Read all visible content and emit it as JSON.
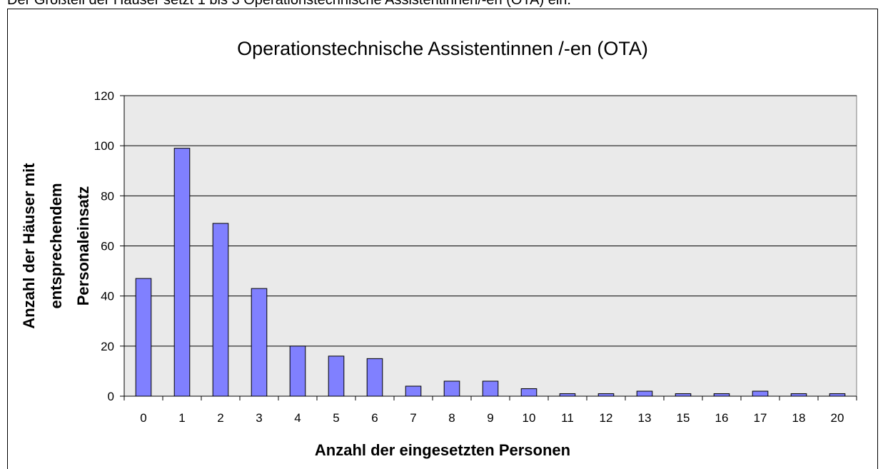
{
  "intro": "Der Großteil der Häuser setzt 1 bis 3 Operationstechnische Assistentinnen/-en (OTA) ein.",
  "chart_data": {
    "type": "bar",
    "title": "Operationstechnische Assistentinnen /-en (OTA)",
    "xlabel": "Anzahl der eingesetzten Personen",
    "ylabel": [
      "Anzahl der Häuser mit",
      "entsprechendem",
      "Personaleinsatz"
    ],
    "categories": [
      "0",
      "1",
      "2",
      "3",
      "4",
      "5",
      "6",
      "7",
      "8",
      "9",
      "10",
      "11",
      "12",
      "13",
      "15",
      "16",
      "17",
      "18",
      "20"
    ],
    "values": [
      47,
      99,
      69,
      43,
      20,
      16,
      15,
      4,
      6,
      6,
      3,
      1,
      1,
      2,
      1,
      1,
      2,
      1,
      1
    ],
    "color": "#8080ff",
    "ylim": [
      0,
      120
    ],
    "yticks": [
      0,
      20,
      40,
      60,
      80,
      100,
      120
    ],
    "grid": true
  }
}
